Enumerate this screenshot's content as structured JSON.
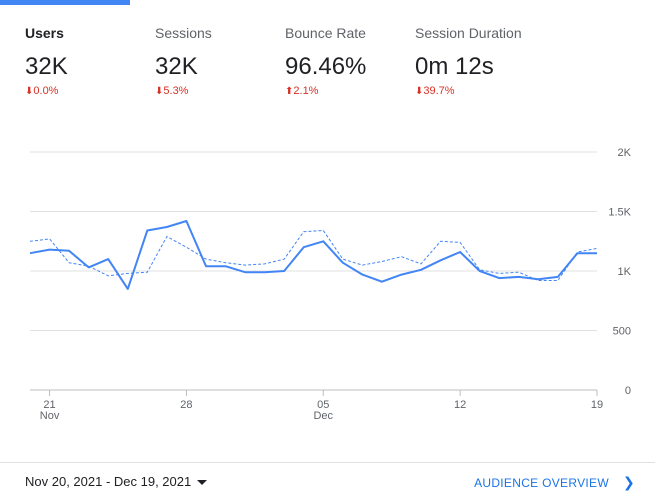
{
  "metrics": [
    {
      "label": "Users",
      "value": "32K",
      "change": "0.0%",
      "direction": "down"
    },
    {
      "label": "Sessions",
      "value": "32K",
      "change": "5.3%",
      "direction": "down"
    },
    {
      "label": "Bounce Rate",
      "value": "96.46%",
      "change": "2.1%",
      "direction": "up"
    },
    {
      "label": "Session Duration",
      "value": "0m 12s",
      "change": "39.7%",
      "direction": "down"
    }
  ],
  "colors": {
    "accent": "#4285f4",
    "negative": "#d93025",
    "link": "#1a73e8"
  },
  "icons": {
    "down": "arrow-down-icon",
    "up": "arrow-up-icon"
  },
  "chart_data": {
    "type": "line",
    "y_ticks": [
      "0",
      "500",
      "1K",
      "1.5K",
      "2K"
    ],
    "ylim": [
      0,
      2000
    ],
    "x_ticks": [
      {
        "label": "21",
        "sub": "Nov",
        "index": 1
      },
      {
        "label": "28",
        "sub": "",
        "index": 8
      },
      {
        "label": "05",
        "sub": "Dec",
        "index": 15
      },
      {
        "label": "12",
        "sub": "",
        "index": 22
      },
      {
        "label": "19",
        "sub": "",
        "index": 29
      }
    ],
    "grid": true,
    "series": [
      {
        "style": "solid",
        "values": [
          1150,
          1180,
          1170,
          1030,
          1100,
          850,
          1340,
          1370,
          1420,
          1040,
          1040,
          990,
          990,
          1000,
          1200,
          1250,
          1070,
          970,
          910,
          970,
          1010,
          1090,
          1160,
          1000,
          940,
          950,
          930,
          950,
          1150,
          1150
        ]
      },
      {
        "style": "dashed",
        "values": [
          1250,
          1270,
          1070,
          1040,
          960,
          980,
          990,
          1290,
          1200,
          1100,
          1070,
          1050,
          1060,
          1100,
          1330,
          1340,
          1100,
          1050,
          1080,
          1120,
          1060,
          1250,
          1240,
          1010,
          980,
          990,
          920,
          920,
          1160,
          1190
        ]
      }
    ]
  },
  "footer": {
    "date_range": "Nov 20, 2021 - Dec 19, 2021",
    "overview_label": "AUDIENCE OVERVIEW"
  }
}
